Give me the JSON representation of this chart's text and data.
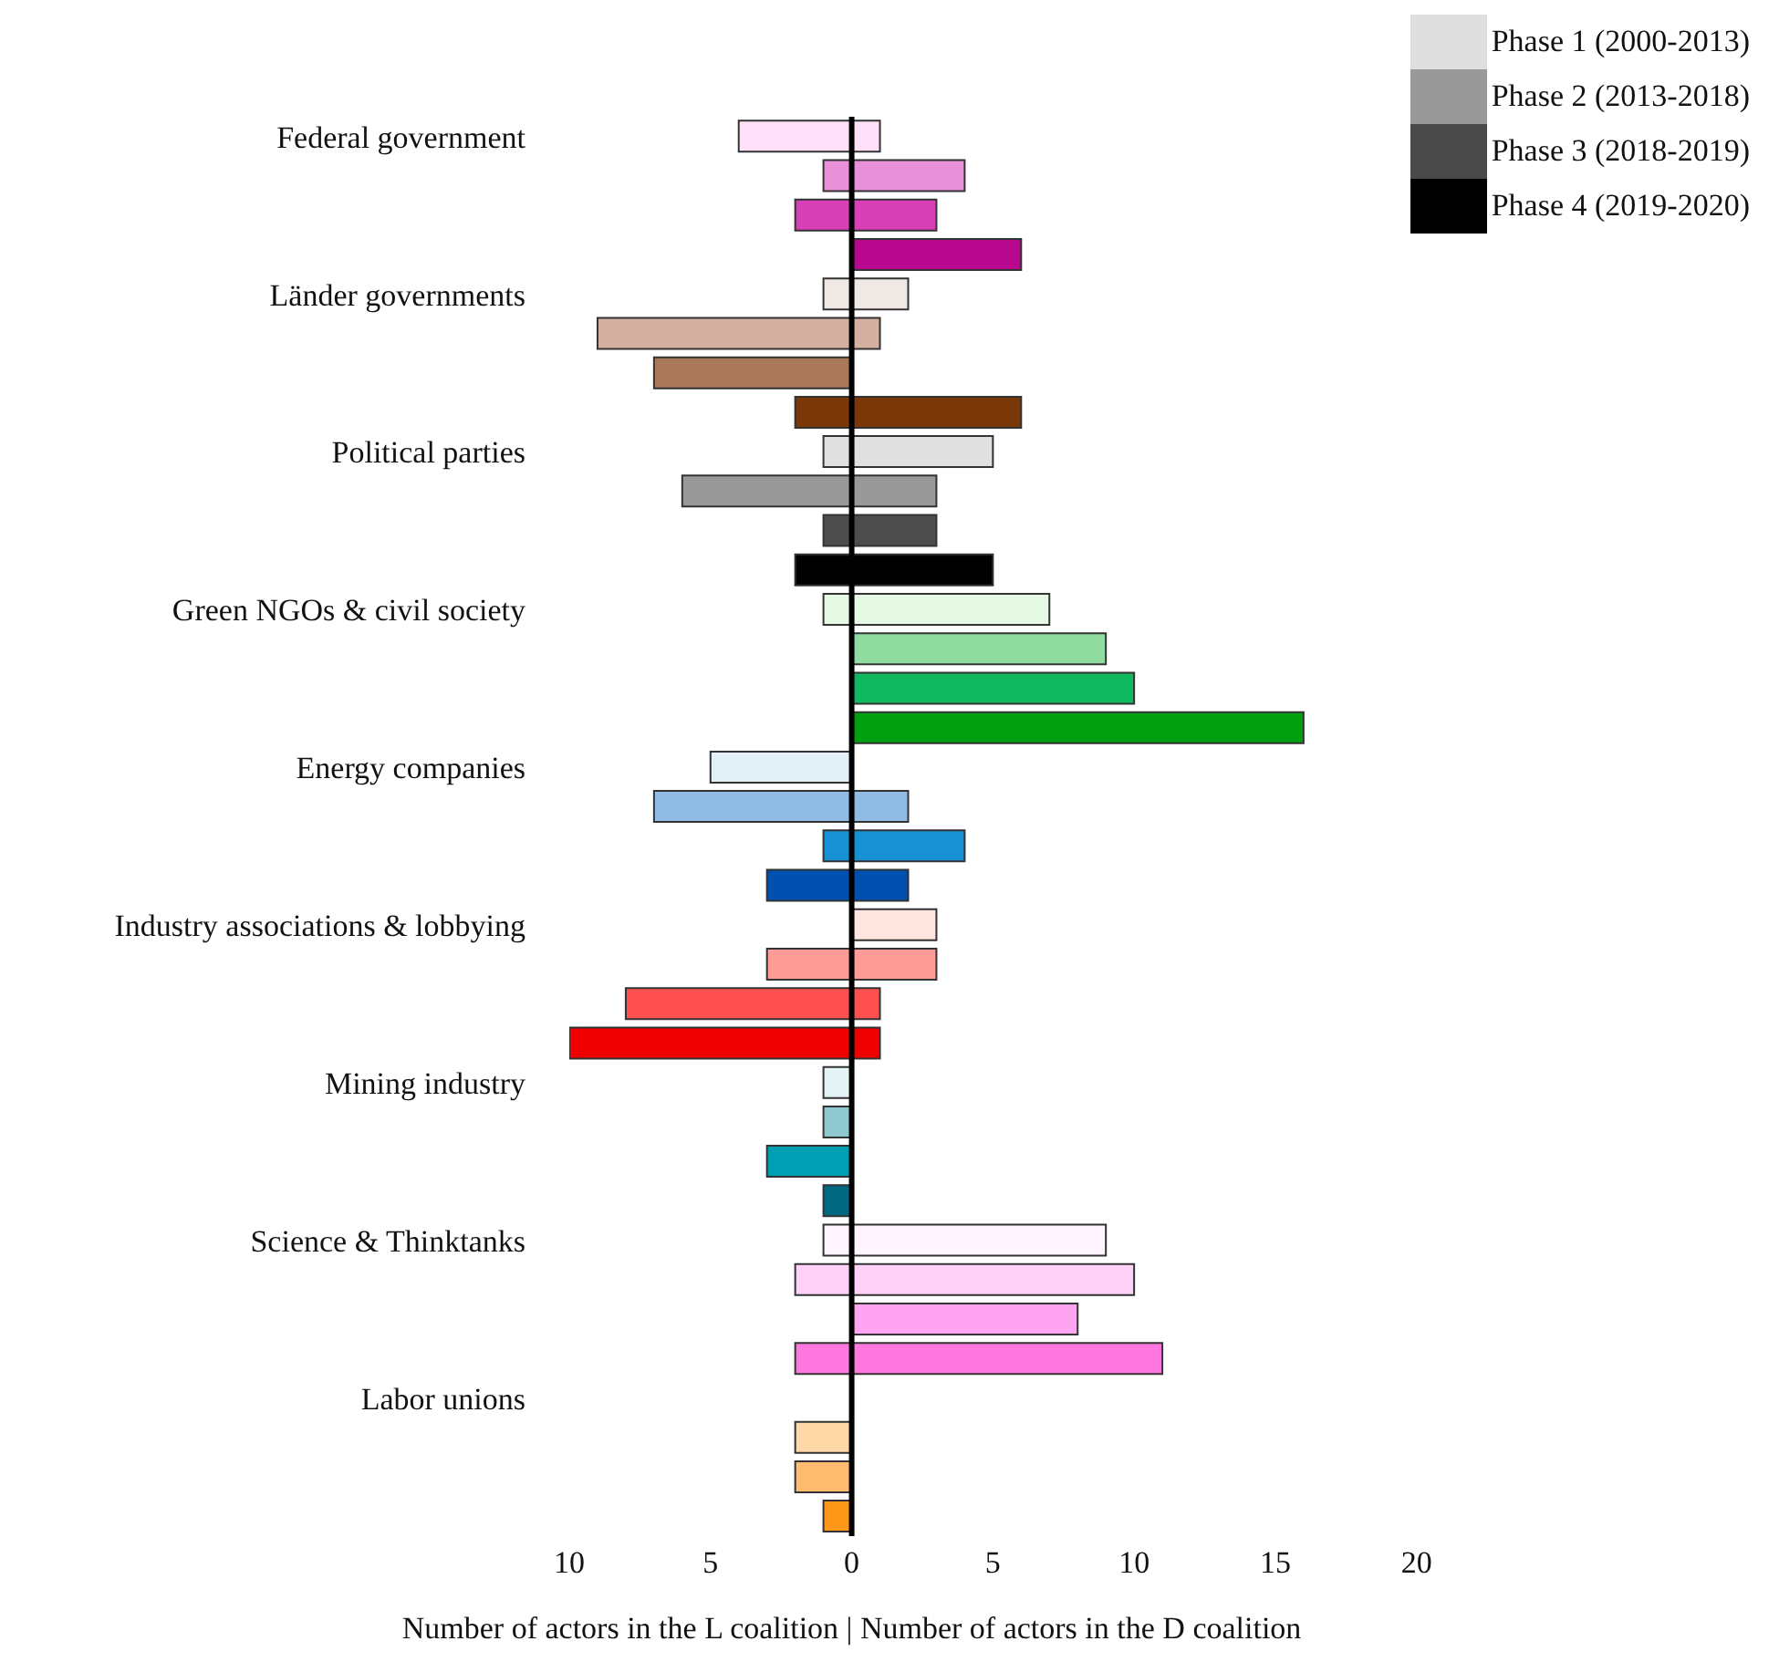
{
  "chart_data": {
    "type": "bar",
    "orientation": "horizontal",
    "stacked": true,
    "categories": [
      "Federal government",
      null,
      null,
      null,
      "Länder governments",
      null,
      null,
      null,
      "Political parties",
      null,
      null,
      null,
      "Green NGOs & civil society",
      null,
      null,
      null,
      "Energy companies",
      null,
      null,
      null,
      "Industry associations & lobbying",
      null,
      null,
      null,
      "Mining industry",
      null,
      null,
      null,
      "Science & Thinktanks",
      null,
      null,
      null,
      "Labor unions",
      null,
      null,
      null
    ],
    "xlabel": "Number of actors in the L coalition | Number of actors in the D coalition",
    "xlim": [
      -10,
      20
    ],
    "xticks": [
      {
        "value": -10,
        "label": "10"
      },
      {
        "value": -5,
        "label": "5"
      },
      0,
      5,
      10,
      15,
      20
    ],
    "ref_lines": [
      {
        "axis": "x",
        "value": 0,
        "color": "#000000"
      }
    ],
    "legend": "top right",
    "grid": false,
    "series": [
      {
        "color": "#dedede",
        "values": [
          -4,
          null,
          null,
          null,
          -1,
          null,
          null,
          null,
          -1,
          null,
          null,
          null,
          -1,
          null,
          null,
          null,
          -5,
          null,
          null,
          null,
          0,
          null,
          null,
          null,
          -1,
          null,
          null,
          null,
          -1,
          null,
          null,
          null,
          0,
          null,
          null,
          null
        ],
        "colors": [
          "#ffe0f8",
          null,
          null,
          null,
          "#f0e8e4",
          null,
          null,
          null,
          "#e0e0e0",
          null,
          null,
          null,
          "#e4f8e4",
          null,
          null,
          null,
          "#e4f0f8",
          null,
          null,
          null,
          "#ffe4e0",
          null,
          null,
          null,
          "#e4f4f4",
          null,
          null,
          null,
          "#fff4ff",
          null,
          null,
          null,
          "#ffe8d0",
          null,
          null,
          null
        ]
      },
      {
        "name": "Phase 1 (2000-2013)",
        "color": "#dedede",
        "values": [
          1,
          null,
          null,
          null,
          2,
          null,
          null,
          null,
          5,
          null,
          null,
          null,
          7,
          null,
          null,
          null,
          0,
          null,
          null,
          null,
          3,
          null,
          null,
          null,
          0,
          null,
          null,
          null,
          9,
          null,
          null,
          null,
          0,
          null,
          null,
          null
        ],
        "colors": [
          "#ffe0f8",
          null,
          null,
          null,
          "#f0e8e4",
          null,
          null,
          null,
          "#e0e0e0",
          null,
          null,
          null,
          "#e4f8e4",
          null,
          null,
          null,
          "#e4f0f8",
          null,
          null,
          null,
          "#ffe4e0",
          null,
          null,
          null,
          "#e4f4f4",
          null,
          null,
          null,
          "#fff4ff",
          null,
          null,
          null,
          "#ffe8d0",
          null,
          null,
          null
        ]
      },
      {
        "color": "#999999",
        "values": [
          null,
          -1,
          null,
          null,
          null,
          -9,
          null,
          null,
          null,
          -6,
          null,
          null,
          null,
          0,
          null,
          null,
          null,
          -7,
          null,
          null,
          null,
          -3,
          null,
          null,
          null,
          -1,
          null,
          null,
          null,
          -2,
          null,
          null,
          null,
          -2,
          null,
          null
        ],
        "colors": [
          null,
          "#e890d8",
          null,
          null,
          null,
          "#d4b0a0",
          null,
          null,
          null,
          "#999999",
          null,
          null,
          null,
          "#90dca0",
          null,
          null,
          null,
          "#90bce4",
          null,
          null,
          null,
          "#ff9c98",
          null,
          null,
          null,
          "#90c8d0",
          null,
          null,
          null,
          "#ffd0f8",
          null,
          null,
          null,
          "#ffd8a8",
          null,
          null
        ]
      },
      {
        "name": "Phase 2 (2013-2018)",
        "color": "#999999",
        "values": [
          null,
          4,
          null,
          null,
          null,
          1,
          null,
          null,
          null,
          3,
          null,
          null,
          null,
          9,
          null,
          null,
          null,
          2,
          null,
          null,
          null,
          3,
          null,
          null,
          null,
          0,
          null,
          null,
          null,
          10,
          null,
          null,
          null,
          0,
          null,
          null
        ],
        "colors": [
          null,
          "#e890d8",
          null,
          null,
          null,
          "#d4b0a0",
          null,
          null,
          null,
          "#999999",
          null,
          null,
          null,
          "#90dca0",
          null,
          null,
          null,
          "#90bce4",
          null,
          null,
          null,
          "#ff9c98",
          null,
          null,
          null,
          "#90c8d0",
          null,
          null,
          null,
          "#ffd0f8",
          null,
          null,
          null,
          "#ffd8a8",
          null,
          null
        ]
      },
      {
        "color": "#4a4a4a",
        "values": [
          null,
          null,
          -2,
          null,
          null,
          null,
          -7,
          null,
          null,
          null,
          -1,
          null,
          null,
          null,
          0,
          null,
          null,
          null,
          -1,
          null,
          null,
          null,
          -8,
          null,
          null,
          null,
          -3,
          null,
          null,
          null,
          0,
          null,
          null,
          null,
          -2,
          null
        ],
        "colors": [
          null,
          null,
          "#d840b8",
          null,
          null,
          null,
          "#a87858",
          null,
          null,
          null,
          "#4d4d4d",
          null,
          null,
          null,
          "#10b860",
          null,
          null,
          null,
          "#1890d4",
          null,
          null,
          null,
          "#ff5050",
          null,
          null,
          null,
          "#00a0b4",
          null,
          null,
          null,
          "#ffa4f0",
          null,
          null,
          null,
          "#ffbc70",
          null
        ]
      },
      {
        "name": "Phase 3 (2018-2019)",
        "color": "#4a4a4a",
        "values": [
          null,
          null,
          3,
          null,
          null,
          null,
          0,
          null,
          null,
          null,
          3,
          null,
          null,
          null,
          10,
          null,
          null,
          null,
          4,
          null,
          null,
          null,
          1,
          null,
          null,
          null,
          0,
          null,
          null,
          null,
          8,
          null,
          null,
          null,
          0,
          null
        ],
        "colors": [
          null,
          null,
          "#d840b8",
          null,
          null,
          null,
          "#a87858",
          null,
          null,
          null,
          "#4d4d4d",
          null,
          null,
          null,
          "#10b860",
          null,
          null,
          null,
          "#1890d4",
          null,
          null,
          null,
          "#ff5050",
          null,
          null,
          null,
          "#00a0b4",
          null,
          null,
          null,
          "#ffa4f0",
          null,
          null,
          null,
          "#ffbc70",
          null
        ]
      },
      {
        "color": "#000000",
        "values": [
          null,
          null,
          null,
          0,
          null,
          null,
          null,
          -2,
          null,
          null,
          null,
          -2,
          null,
          null,
          null,
          0,
          null,
          null,
          null,
          -3,
          null,
          null,
          null,
          -10,
          null,
          null,
          null,
          -1,
          null,
          null,
          null,
          -2,
          null,
          null,
          null,
          -1
        ],
        "colors": [
          null,
          null,
          null,
          "#b80890",
          null,
          null,
          null,
          "#7a3808",
          null,
          null,
          null,
          "#000000",
          null,
          null,
          null,
          "#00a010",
          null,
          null,
          null,
          "#0050b0",
          null,
          null,
          null,
          "#f00000",
          null,
          null,
          null,
          "#006880",
          null,
          null,
          null,
          "#ff78e0",
          null,
          null,
          null,
          "#ff9818"
        ]
      },
      {
        "name": "Phase 4 (2019-2020)",
        "color": "#000000",
        "values": [
          null,
          null,
          null,
          6,
          null,
          null,
          null,
          6,
          null,
          null,
          null,
          5,
          null,
          null,
          null,
          16,
          null,
          null,
          null,
          2,
          null,
          null,
          null,
          1,
          null,
          null,
          null,
          0,
          null,
          null,
          null,
          11,
          null,
          null,
          null,
          0
        ],
        "colors": [
          null,
          null,
          null,
          "#b80890",
          null,
          null,
          null,
          "#7a3808",
          null,
          null,
          null,
          "#000000",
          null,
          null,
          null,
          "#00a010",
          null,
          null,
          null,
          "#0050b0",
          null,
          null,
          null,
          "#f00000",
          null,
          null,
          null,
          "#006880",
          null,
          null,
          null,
          "#ff78e0",
          null,
          null,
          null,
          "#ff9818"
        ]
      }
    ]
  }
}
